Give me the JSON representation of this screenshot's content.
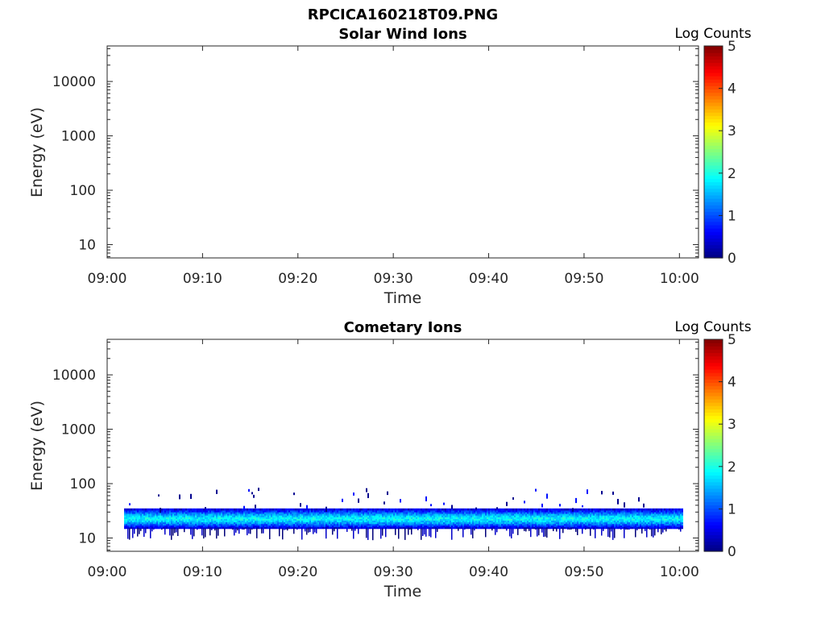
{
  "figure_title": "RPCICA160218T09.PNG",
  "chart_data": [
    {
      "type": "heatmap",
      "title": "Solar Wind Ions",
      "xlabel": "Time",
      "ylabel": "Energy (eV)",
      "x_ticks": [
        "09:00",
        "09:10",
        "09:20",
        "09:30",
        "09:40",
        "09:50",
        "10:00"
      ],
      "xlim": [
        "09:00",
        "10:02"
      ],
      "y_scale": "log",
      "y_ticks": [
        "10",
        "100",
        "1000",
        "10000"
      ],
      "ylim": [
        5.7,
        45000
      ],
      "colorbar": {
        "label": "Log Counts",
        "range": [
          0,
          5
        ],
        "ticks": [
          "0",
          "1",
          "2",
          "3",
          "4",
          "5"
        ],
        "colormap": "jet"
      },
      "band": null
    },
    {
      "type": "heatmap",
      "title": "Cometary Ions",
      "xlabel": "Time",
      "ylabel": "Energy (eV)",
      "x_ticks": [
        "09:00",
        "09:10",
        "09:20",
        "09:30",
        "09:40",
        "09:50",
        "10:00"
      ],
      "xlim": [
        "09:00",
        "10:02"
      ],
      "y_scale": "log",
      "y_ticks": [
        "10",
        "100",
        "1000",
        "10000"
      ],
      "ylim": [
        5.7,
        45000
      ],
      "colorbar": {
        "label": "Log Counts",
        "range": [
          0,
          5
        ],
        "ticks": [
          "0",
          "1",
          "2",
          "3",
          "4",
          "5"
        ],
        "colormap": "jet"
      },
      "band": {
        "t_start": "09:01.8",
        "t_end": "10:00.3",
        "energy_min": 15,
        "energy_max": 35,
        "peak_energy": 23,
        "peak_log_counts": 1.9,
        "edge_log_counts": 0.3,
        "sporadic_energy_max": 85
      }
    }
  ]
}
